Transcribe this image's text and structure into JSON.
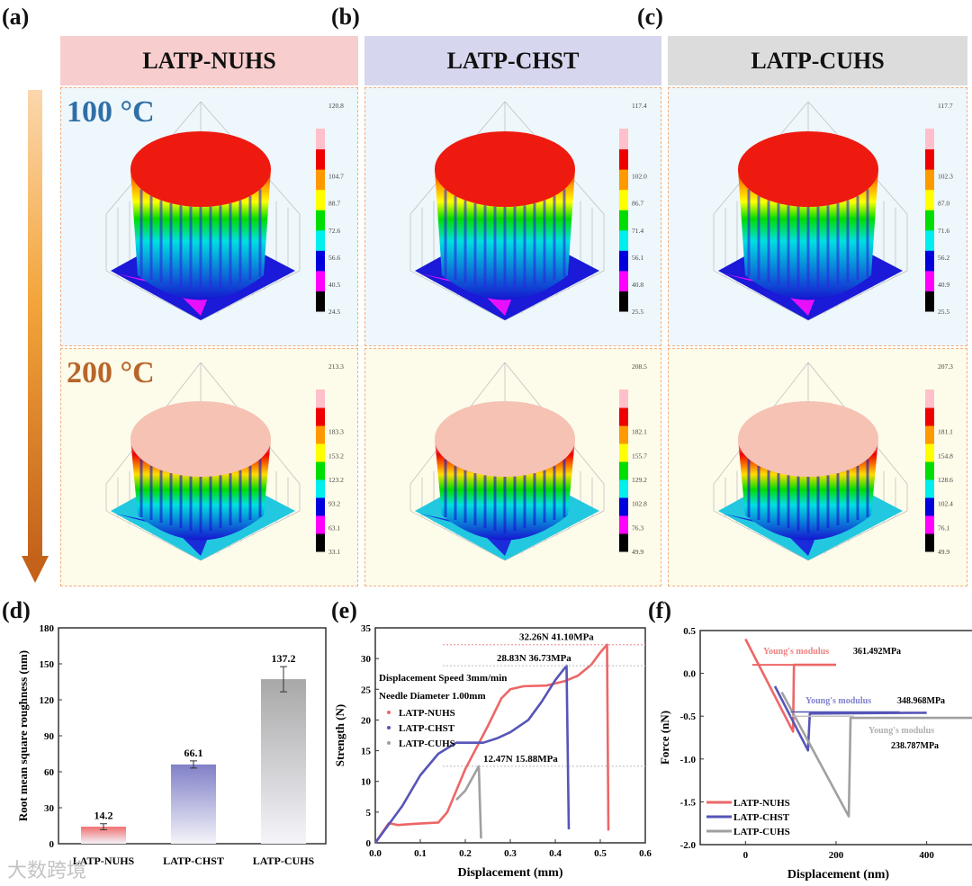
{
  "panel_labels": [
    "(a)",
    "(b)",
    "(c)",
    "(d)",
    "(e)",
    "(f)"
  ],
  "headers": [
    {
      "label": "LATP-NUHS",
      "color": "#f8cdcd"
    },
    {
      "label": "LATP-CHST",
      "color": "#d6d6ee"
    },
    {
      "label": "LATP-CUHS",
      "color": "#dcdcdc"
    }
  ],
  "temperatures": [
    {
      "label": "100 °C",
      "color": "#2f6fa8"
    },
    {
      "label": "200 °C",
      "color": "#b8652a"
    }
  ],
  "surfaces": [
    {
      "sample": "LATP-NUHS",
      "temp": "100 °C",
      "colorbar": [
        "120.8",
        "104.7",
        "88.7",
        "72.6",
        "56.6",
        "40.5",
        "24.5"
      ],
      "top": "red"
    },
    {
      "sample": "LATP-CHST",
      "temp": "100 °C",
      "colorbar": [
        "117.4",
        "102.0",
        "86.7",
        "71.4",
        "56.1",
        "40.8",
        "25.5"
      ],
      "top": "red"
    },
    {
      "sample": "LATP-CUHS",
      "temp": "100 °C",
      "colorbar": [
        "117.7",
        "102.3",
        "87.0",
        "71.6",
        "56.2",
        "40.9",
        "25.5"
      ],
      "top": "red"
    },
    {
      "sample": "LATP-NUHS",
      "temp": "200 °C",
      "colorbar": [
        "213.3",
        "183.3",
        "153.2",
        "123.2",
        "93.2",
        "63.1",
        "33.1"
      ],
      "top": "pink"
    },
    {
      "sample": "LATP-CHST",
      "temp": "200 °C",
      "colorbar": [
        "208.5",
        "182.1",
        "155.7",
        "129.2",
        "102.8",
        "76.3",
        "49.9"
      ],
      "top": "pink"
    },
    {
      "sample": "LATP-CUHS",
      "temp": "200 °C",
      "colorbar": [
        "207.3",
        "181.1",
        "154.8",
        "128.6",
        "102.4",
        "76.1",
        "49.9"
      ],
      "top": "pink"
    }
  ],
  "chart_data": [
    {
      "type": "bar",
      "id": "d",
      "categories": [
        "LATP-NUHS",
        "LATP-CHST",
        "LATP-CUHS"
      ],
      "values": [
        14.2,
        66.1,
        137.2
      ],
      "errors": [
        2.5,
        3,
        10.5
      ],
      "value_labels": [
        "14.2",
        "66.1",
        "137.2"
      ],
      "colors": [
        "#f07070",
        "#8080c8",
        "#a8a8a8"
      ],
      "xlabel": "",
      "ylabel": "Root mean square roughness (nm)",
      "ylim": [
        0,
        180
      ],
      "yticks": [
        "0",
        "30",
        "60",
        "90",
        "120",
        "150",
        "180"
      ]
    },
    {
      "type": "line",
      "id": "e",
      "xlabel": "Displacement (mm)",
      "ylabel": "Strength (N)",
      "xlim": [
        0,
        0.6
      ],
      "ylim": [
        0,
        35
      ],
      "xticks": [
        "0.0",
        "0.1",
        "0.2",
        "0.3",
        "0.4",
        "0.5",
        "0.6"
      ],
      "yticks": [
        "0",
        "5",
        "10",
        "15",
        "20",
        "25",
        "30",
        "35"
      ],
      "notes": [
        "Displacement Speed 3mm/min",
        "Needle Diameter 1.00mm"
      ],
      "annotations": [
        {
          "text": "32.26N  41.10MPa",
          "y": 32.26,
          "x": 0.32
        },
        {
          "text": "28.83N  36.73MPa",
          "y": 28.83,
          "x": 0.27
        },
        {
          "text": "12.47N  15.88MPa",
          "y": 12.47,
          "x": 0.24
        }
      ],
      "legend_position": "left",
      "series": [
        {
          "name": "LATP-NUHS",
          "color": "#ee6666",
          "points": [
            [
              0,
              0
            ],
            [
              0.03,
              3.2
            ],
            [
              0.05,
              2.9
            ],
            [
              0.09,
              3.1
            ],
            [
              0.14,
              3.3
            ],
            [
              0.16,
              5
            ],
            [
              0.2,
              12
            ],
            [
              0.25,
              19
            ],
            [
              0.28,
              23.5
            ],
            [
              0.3,
              25
            ],
            [
              0.33,
              25.5
            ],
            [
              0.38,
              25.6
            ],
            [
              0.42,
              26.3
            ],
            [
              0.45,
              27.2
            ],
            [
              0.48,
              29
            ],
            [
              0.5,
              31
            ],
            [
              0.515,
              32.26
            ],
            [
              0.518,
              2
            ]
          ]
        },
        {
          "name": "LATP-CHST",
          "color": "#5555b8",
          "points": [
            [
              0,
              0
            ],
            [
              0.03,
              3
            ],
            [
              0.06,
              6
            ],
            [
              0.1,
              11
            ],
            [
              0.14,
              14.5
            ],
            [
              0.18,
              16.3
            ],
            [
              0.24,
              16.3
            ],
            [
              0.27,
              17
            ],
            [
              0.3,
              18
            ],
            [
              0.34,
              20
            ],
            [
              0.37,
              23
            ],
            [
              0.4,
              26.5
            ],
            [
              0.425,
              28.83
            ],
            [
              0.43,
              2.2
            ]
          ]
        },
        {
          "name": "LATP-CUHS",
          "color": "#a0a0a0",
          "points": [
            [
              0.18,
              7
            ],
            [
              0.2,
              8.5
            ],
            [
              0.23,
              12.47
            ],
            [
              0.235,
              0.7
            ]
          ]
        }
      ]
    },
    {
      "type": "line",
      "id": "f",
      "xlabel": "Displacement (nm)",
      "ylabel": "Force (nN)",
      "xlim": [
        -100,
        510
      ],
      "ylim": [
        -2.0,
        0.5
      ],
      "xticks": [
        "0",
        "200",
        "400"
      ],
      "yticks": [
        "-2.0",
        "-1.5",
        "-1.0",
        "-0.5",
        "0.0",
        "0.5"
      ],
      "legend_position": "bottom-left",
      "annotations": [
        {
          "label": "Young's modulus",
          "value": "361.492MPa",
          "color": "#ee8080"
        },
        {
          "label": "Young's modulus",
          "value": "348.968MPa",
          "color": "#8080d0"
        },
        {
          "label": "Young's modulus",
          "value": "238.787MPa",
          "color": "#b0b0b0"
        }
      ],
      "series": [
        {
          "name": "LATP-NUHS",
          "color": "#ee6666",
          "points": [
            [
              0,
              0.4
            ],
            [
              105,
              -0.68
            ],
            [
              107,
              0.1
            ],
            [
              200,
              0.1
            ]
          ]
        },
        {
          "name": "LATP-CHST",
          "color": "#5555b8",
          "points": [
            [
              65,
              -0.15
            ],
            [
              138,
              -0.9
            ],
            [
              142,
              -0.47
            ],
            [
              400,
              -0.46
            ]
          ]
        },
        {
          "name": "LATP-CUHS",
          "color": "#a0a0a0",
          "points": [
            [
              80,
              -0.22
            ],
            [
              228,
              -1.67
            ],
            [
              232,
              -0.52
            ],
            [
              510,
              -0.52
            ]
          ]
        }
      ]
    }
  ],
  "watermark": "大数跨境"
}
